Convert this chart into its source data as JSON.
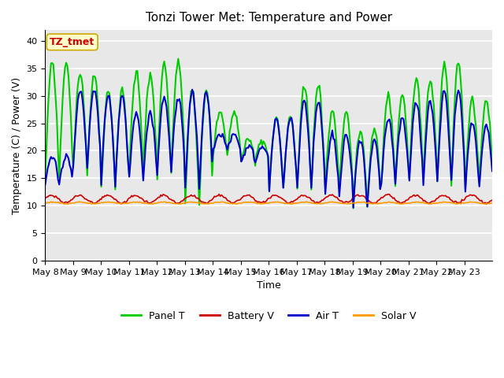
{
  "title": "Tonzi Tower Met: Temperature and Power",
  "xlabel": "Time",
  "ylabel": "Temperature (C) / Power (V)",
  "ylim": [
    0,
    42
  ],
  "yticks": [
    0,
    5,
    10,
    15,
    20,
    25,
    30,
    35,
    40
  ],
  "x_labels": [
    "May 8",
    "May 9",
    "May 10",
    "May 11",
    "May 12",
    "May 13",
    "May 14",
    "May 15",
    "May 16",
    "May 17",
    "May 18",
    "May 19",
    "May 20",
    "May 21",
    "May 22",
    "May 23"
  ],
  "annotation_text": "TZ_tmet",
  "annotation_color": "#cc0000",
  "annotation_bg": "#ffffcc",
  "annotation_edge": "#ccaa00",
  "bg_color": "#e8e8e8",
  "grid_color": "#ffffff",
  "line_colors": {
    "panel_t": "#00cc00",
    "battery_v": "#cc0000",
    "air_t": "#0000cc",
    "solar_v": "#ff9900"
  },
  "line_widths": {
    "panel_t": 1.5,
    "battery_v": 1.2,
    "air_t": 1.5,
    "solar_v": 1.2
  },
  "legend_labels": [
    "Panel T",
    "Battery V",
    "Air T",
    "Solar V"
  ],
  "panel_peaks": [
    36,
    34,
    31,
    34,
    36,
    31,
    27,
    22,
    26,
    32,
    27,
    24,
    30,
    33,
    36,
    29
  ],
  "panel_troughs": [
    15,
    16,
    13,
    16,
    16,
    10,
    19,
    18,
    13,
    13,
    13,
    9.5,
    14,
    15,
    14,
    14
  ],
  "air_peaks": [
    19,
    31,
    30,
    27,
    30,
    31,
    23,
    21,
    26,
    29,
    23,
    22,
    26,
    29,
    31,
    25
  ],
  "air_troughs": [
    14,
    17,
    14,
    15,
    16,
    13,
    20,
    18,
    13,
    13,
    12,
    9.8,
    14,
    14,
    14,
    13
  ],
  "days": 16,
  "points_per_day": 24,
  "random_seed": 7
}
